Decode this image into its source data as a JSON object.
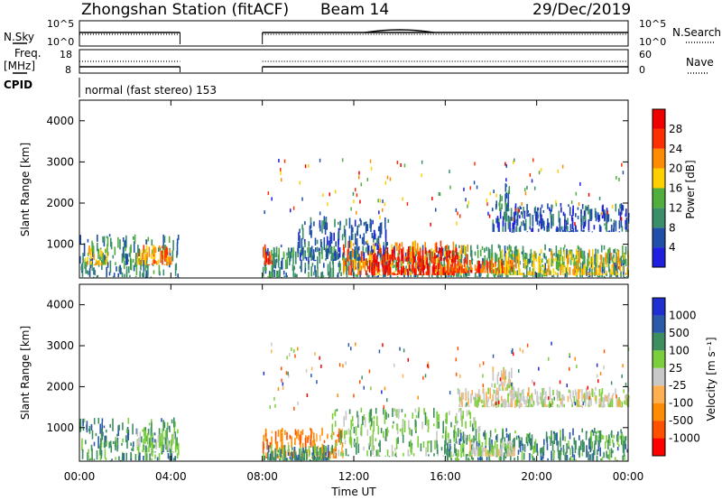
{
  "header": {
    "station": "Zhongshan Station (fitACF)",
    "beam": "Beam 14",
    "date": "29/Dec/2019"
  },
  "left_labels": {
    "nsky": "N.Sky",
    "freq": "Freq.",
    "freq_unit": "[MHz]",
    "cpid": "CPID"
  },
  "right_labels": {
    "nsearch": "N.Search",
    "nave": "Nave"
  },
  "cpid_text": "normal (fast stereo) 153",
  "noise_panel": {
    "left_ticks": [
      "10^5",
      "10^0"
    ],
    "right_ticks": [
      "10^5",
      "10^0"
    ]
  },
  "freq_panel": {
    "left_ticks": [
      "18",
      "8"
    ],
    "right_ticks": [
      "60",
      "0"
    ]
  },
  "colors": {
    "power_scale": [
      "#1f1fe0",
      "#1f4fa8",
      "#3a8f6a",
      "#4fae3c",
      "#ffd000",
      "#ff8c00",
      "#ff3000",
      "#ee0000"
    ],
    "velocity_scale": [
      "#ff0000",
      "#ff5000",
      "#ff8c00",
      "#ffb050",
      "#c8c8c8",
      "#7ccf3c",
      "#3e8f5f",
      "#2a5aa8",
      "#1f2fd0"
    ],
    "ground_scatter": "#8f8f8f"
  },
  "chart_data": [
    {
      "type": "heatmap",
      "name": "Power",
      "ylabel": "Slant Range [km]",
      "ylim": [
        180,
        4500
      ],
      "yticks": [
        "1000",
        "2000",
        "3000",
        "4000"
      ],
      "xlim": [
        0,
        24
      ],
      "colorbar_label": "Power [dB]",
      "colorbar_ticks": [
        "4",
        "8",
        "12",
        "16",
        "20",
        "24",
        "28"
      ],
      "blobs": [
        {
          "t0": 0.0,
          "t1": 4.4,
          "r0": 200,
          "r1": 1250,
          "level": 2
        },
        {
          "t0": 2.5,
          "t1": 4.0,
          "r0": 500,
          "r1": 1000,
          "level": 5
        },
        {
          "t0": 0.2,
          "t1": 1.2,
          "r0": 500,
          "r1": 1000,
          "level": 4
        },
        {
          "t0": 8.0,
          "t1": 24.0,
          "r0": 200,
          "r1": 1000,
          "level": 2
        },
        {
          "t0": 8.0,
          "t1": 8.4,
          "r0": 500,
          "r1": 1000,
          "level": 6
        },
        {
          "t0": 11.5,
          "t1": 17.0,
          "r0": 250,
          "r1": 1100,
          "level": 5
        },
        {
          "t0": 12.5,
          "t1": 16.5,
          "r0": 250,
          "r1": 950,
          "level": 7
        },
        {
          "t0": 16.0,
          "t1": 19.0,
          "r0": 300,
          "r1": 650,
          "level": 6
        },
        {
          "t0": 18.0,
          "t1": 24.0,
          "r0": 250,
          "r1": 900,
          "level": 4
        },
        {
          "t0": 9.5,
          "t1": 13.5,
          "r0": 600,
          "r1": 1700,
          "level": 1
        },
        {
          "t0": 18.0,
          "t1": 24.0,
          "r0": 1300,
          "r1": 2000,
          "level": 1
        },
        {
          "t0": 18.2,
          "t1": 18.8,
          "r0": 1800,
          "r1": 2500,
          "level": 2
        }
      ]
    },
    {
      "type": "heatmap",
      "name": "Velocity",
      "ylabel": "Slant Range [km]",
      "xlabel": "Time UT",
      "ylim": [
        180,
        4500
      ],
      "yticks": [
        "1000",
        "2000",
        "3000",
        "4000"
      ],
      "xticks": [
        "00:00",
        "04:00",
        "08:00",
        "12:00",
        "16:00",
        "20:00",
        "00:00"
      ],
      "xlim": [
        0,
        24
      ],
      "colorbar_label": "Velocity [m s⁻¹]",
      "colorbar_ticks": [
        "1000",
        "500",
        "100",
        "25",
        "-25",
        "-100",
        "-500",
        "-1000"
      ],
      "blobs": [
        {
          "t0": 0.0,
          "t1": 4.4,
          "r0": 200,
          "r1": 1250,
          "level": 6
        },
        {
          "t0": 2.5,
          "t1": 4.2,
          "r0": 400,
          "r1": 1000,
          "level": 5
        },
        {
          "t0": 8.0,
          "t1": 11.5,
          "r0": 250,
          "r1": 1000,
          "level": 2
        },
        {
          "t0": 8.0,
          "t1": 11.0,
          "r0": 200,
          "r1": 600,
          "level": 6
        },
        {
          "t0": 11.0,
          "t1": 17.5,
          "r0": 300,
          "r1": 1500,
          "level": 5
        },
        {
          "t0": 16.0,
          "t1": 24.0,
          "r0": 200,
          "r1": 1000,
          "level": 6
        },
        {
          "t0": 16.5,
          "t1": 24.0,
          "r0": 1500,
          "r1": 2000,
          "level": 4
        },
        {
          "t0": 18.0,
          "t1": 18.9,
          "r0": 1900,
          "r1": 2500,
          "level": 4
        },
        {
          "t0": 17.0,
          "t1": 19.0,
          "r0": 300,
          "r1": 700,
          "level": 4
        }
      ]
    }
  ]
}
